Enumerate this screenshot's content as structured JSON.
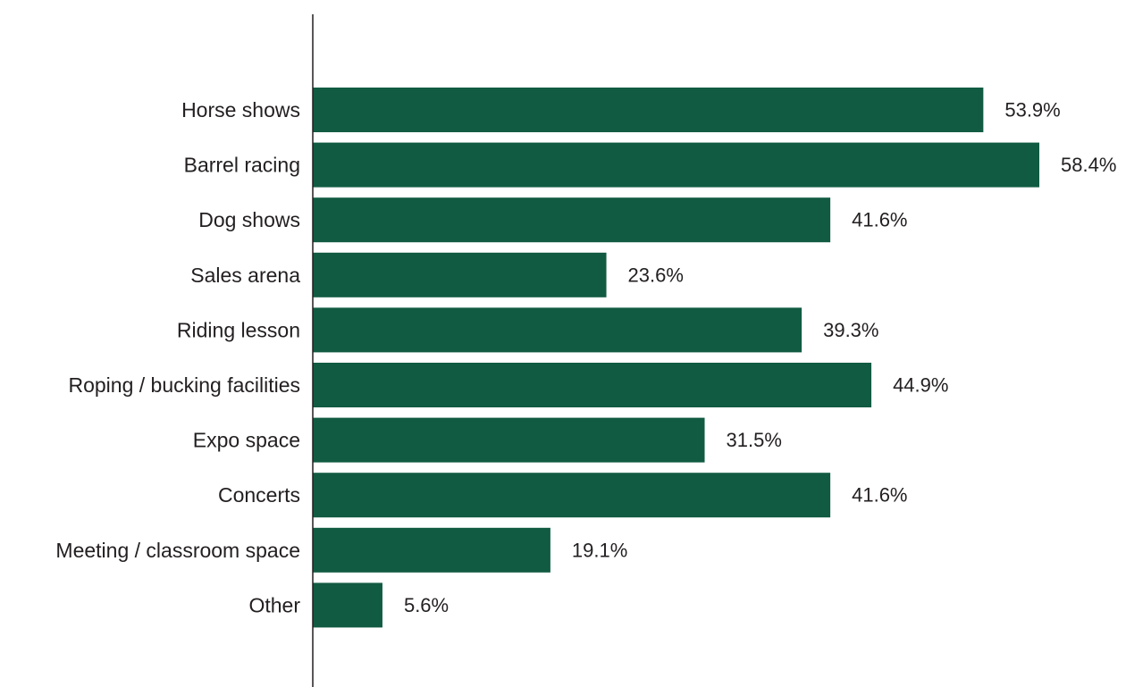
{
  "chart_data": {
    "type": "bar",
    "orientation": "horizontal",
    "categories": [
      "Horse shows",
      "Barrel racing",
      "Dog shows",
      "Sales arena",
      "Riding lesson",
      "Roping / bucking facilities",
      "Expo space",
      "Concerts",
      "Meeting / classroom space",
      "Other"
    ],
    "values": [
      53.9,
      58.4,
      41.6,
      23.6,
      39.3,
      44.9,
      31.5,
      41.6,
      19.1,
      5.6
    ],
    "data_labels": [
      "53.9%",
      "58.4%",
      "41.6%",
      "23.6%",
      "39.3%",
      "44.9%",
      "31.5%",
      "41.6%",
      "19.1%",
      "5.6%"
    ],
    "unit": "%",
    "xlim": [
      0,
      60
    ],
    "grid": false,
    "legend": "none",
    "bar_color": "#115b42",
    "axis_color": "#231f20",
    "text_color": "#231f20"
  }
}
